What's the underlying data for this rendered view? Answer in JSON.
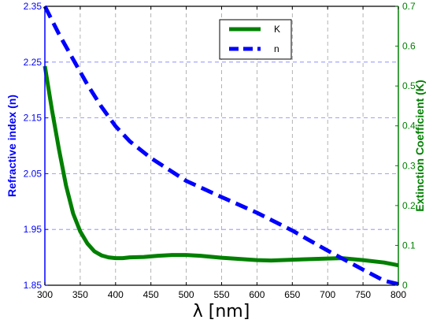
{
  "chart_data": {
    "type": "line",
    "xlabel": "λ [nm]",
    "ylabel_left": "Refractive index (n)",
    "ylabel_right": "Extinction Coefficient (K)",
    "xlim": [
      300,
      800
    ],
    "ylim_left": [
      1.85,
      2.35
    ],
    "ylim_right": [
      0,
      0.7
    ],
    "x_ticks": [
      "300",
      "350",
      "400",
      "450",
      "500",
      "550",
      "600",
      "650",
      "700",
      "750",
      "800"
    ],
    "y_left_ticks": [
      "1.85",
      "1.95",
      "2.05",
      "2.15",
      "2.25",
      "2.35"
    ],
    "y_right_ticks": [
      "0",
      "0.1",
      "0.2",
      "0.3",
      "0.4",
      "0.5",
      "0.6",
      "0.7"
    ],
    "grid": true,
    "legend_position": "top-center",
    "series": [
      {
        "name": "K",
        "axis": "right",
        "color": "#008000",
        "style": "solid",
        "x": [
          300,
          310,
          320,
          330,
          340,
          350,
          360,
          370,
          380,
          390,
          400,
          410,
          420,
          440,
          460,
          480,
          500,
          520,
          550,
          600,
          620,
          650,
          700,
          720,
          750,
          780,
          800
        ],
        "y": [
          0.55,
          0.44,
          0.34,
          0.25,
          0.18,
          0.135,
          0.105,
          0.085,
          0.075,
          0.07,
          0.068,
          0.068,
          0.07,
          0.071,
          0.074,
          0.076,
          0.076,
          0.074,
          0.069,
          0.063,
          0.062,
          0.064,
          0.067,
          0.068,
          0.063,
          0.057,
          0.05
        ]
      },
      {
        "name": "n",
        "axis": "left",
        "color": "#0000ff",
        "style": "dashed",
        "x": [
          300,
          310,
          320,
          340,
          360,
          380,
          400,
          420,
          450,
          500,
          550,
          600,
          650,
          700,
          750,
          780,
          800
        ],
        "y": [
          2.35,
          2.325,
          2.3,
          2.255,
          2.21,
          2.17,
          2.135,
          2.108,
          2.078,
          2.037,
          2.008,
          1.98,
          1.948,
          1.912,
          1.878,
          1.858,
          1.852
        ]
      }
    ]
  }
}
